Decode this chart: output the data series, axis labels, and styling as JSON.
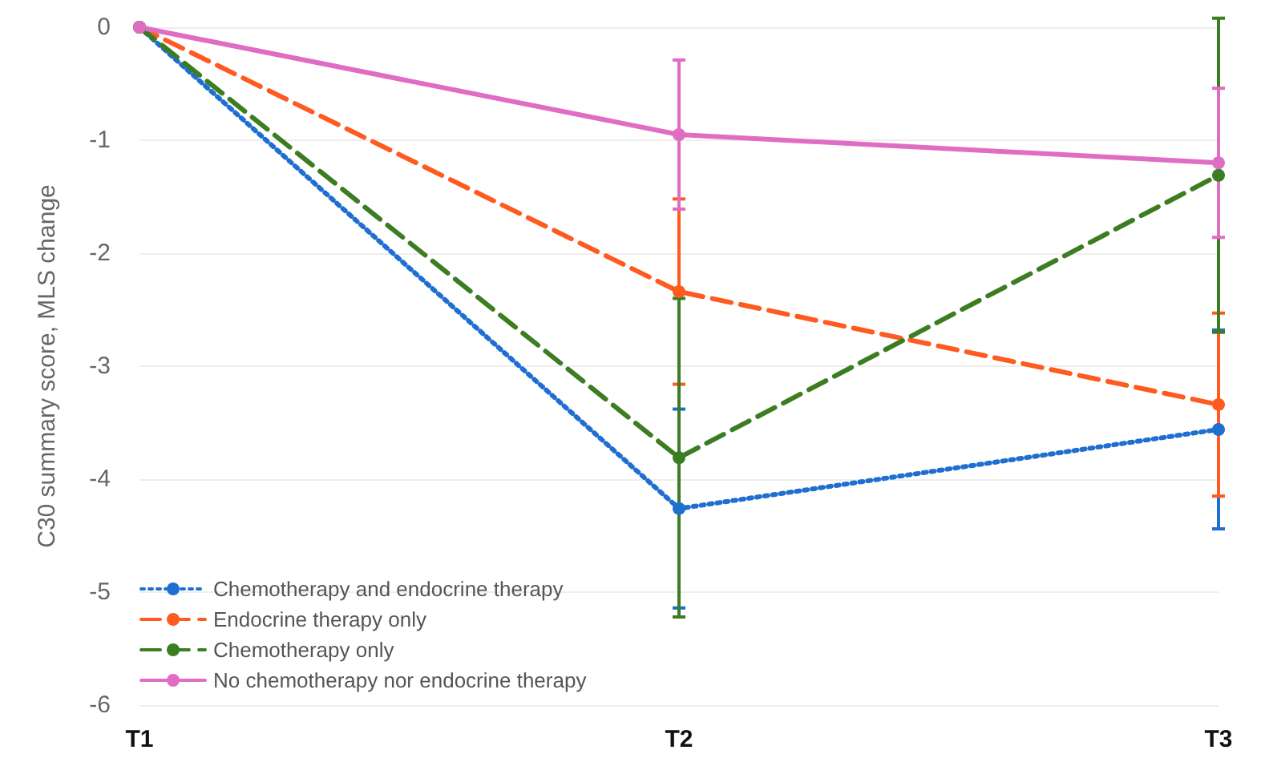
{
  "chart_data": {
    "type": "line",
    "ylabel": "C30 summary score, MLS change",
    "categories": [
      "T1",
      "T2",
      "T3"
    ],
    "series": [
      {
        "name": "Chemotherapy and endocrine therapy",
        "color": "#1f6fd1",
        "line_style": "dotted",
        "values": [
          0,
          -4.26,
          -3.56
        ],
        "errors": [
          null,
          0.88,
          0.88
        ]
      },
      {
        "name": "Endocrine therapy only",
        "color": "#ff5a1f",
        "line_style": "dashed",
        "values": [
          0,
          -2.34,
          -3.34
        ],
        "errors": [
          null,
          0.82,
          0.81
        ]
      },
      {
        "name": "Chemotherapy only",
        "color": "#3c7d22",
        "line_style": "dashed",
        "values": [
          0,
          -3.81,
          -1.31
        ],
        "errors": [
          null,
          1.41,
          1.39
        ]
      },
      {
        "name": "No chemotherapy nor endocrine therapy",
        "color": "#e06cc4",
        "line_style": "solid",
        "values": [
          0,
          -0.95,
          -1.2
        ],
        "errors": [
          null,
          0.66,
          0.66
        ]
      }
    ],
    "ylim": [
      -6,
      0
    ],
    "yticks": [
      -6,
      -5,
      -4,
      -3,
      -2,
      -1,
      0
    ],
    "grid": "y",
    "legend": "bottom left",
    "marker": "circle"
  }
}
